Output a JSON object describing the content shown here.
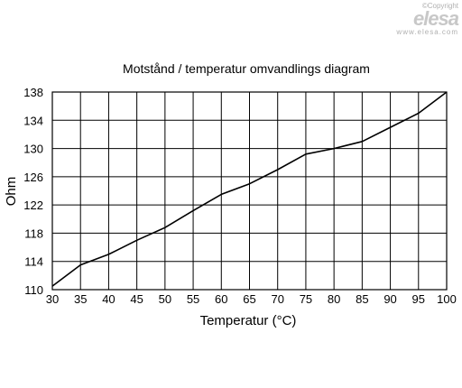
{
  "logo": {
    "copyright": "©Copyright",
    "brand": "elesa",
    "url": "www.elesa.com"
  },
  "chart_data": {
    "type": "line",
    "title": "Motstånd / temperatur omvandlings diagram",
    "xlabel": "Temperatur (°C)",
    "ylabel": "Ohm",
    "xlim": [
      30,
      100
    ],
    "ylim": [
      110,
      138
    ],
    "xticks": [
      30,
      35,
      40,
      45,
      50,
      55,
      60,
      65,
      70,
      75,
      80,
      85,
      90,
      95,
      100
    ],
    "yticks": [
      110,
      114,
      118,
      122,
      126,
      130,
      134,
      138
    ],
    "grid": true,
    "series": [
      {
        "x": [
          30,
          35,
          40,
          45,
          50,
          55,
          60,
          65,
          70,
          75,
          80,
          85,
          90,
          95,
          100
        ],
        "values": [
          110.5,
          113.5,
          115.0,
          117.0,
          118.8,
          121.2,
          123.5,
          125.0,
          127.0,
          129.2,
          130.0,
          131.0,
          133.0,
          135.0,
          138.0
        ]
      }
    ]
  }
}
